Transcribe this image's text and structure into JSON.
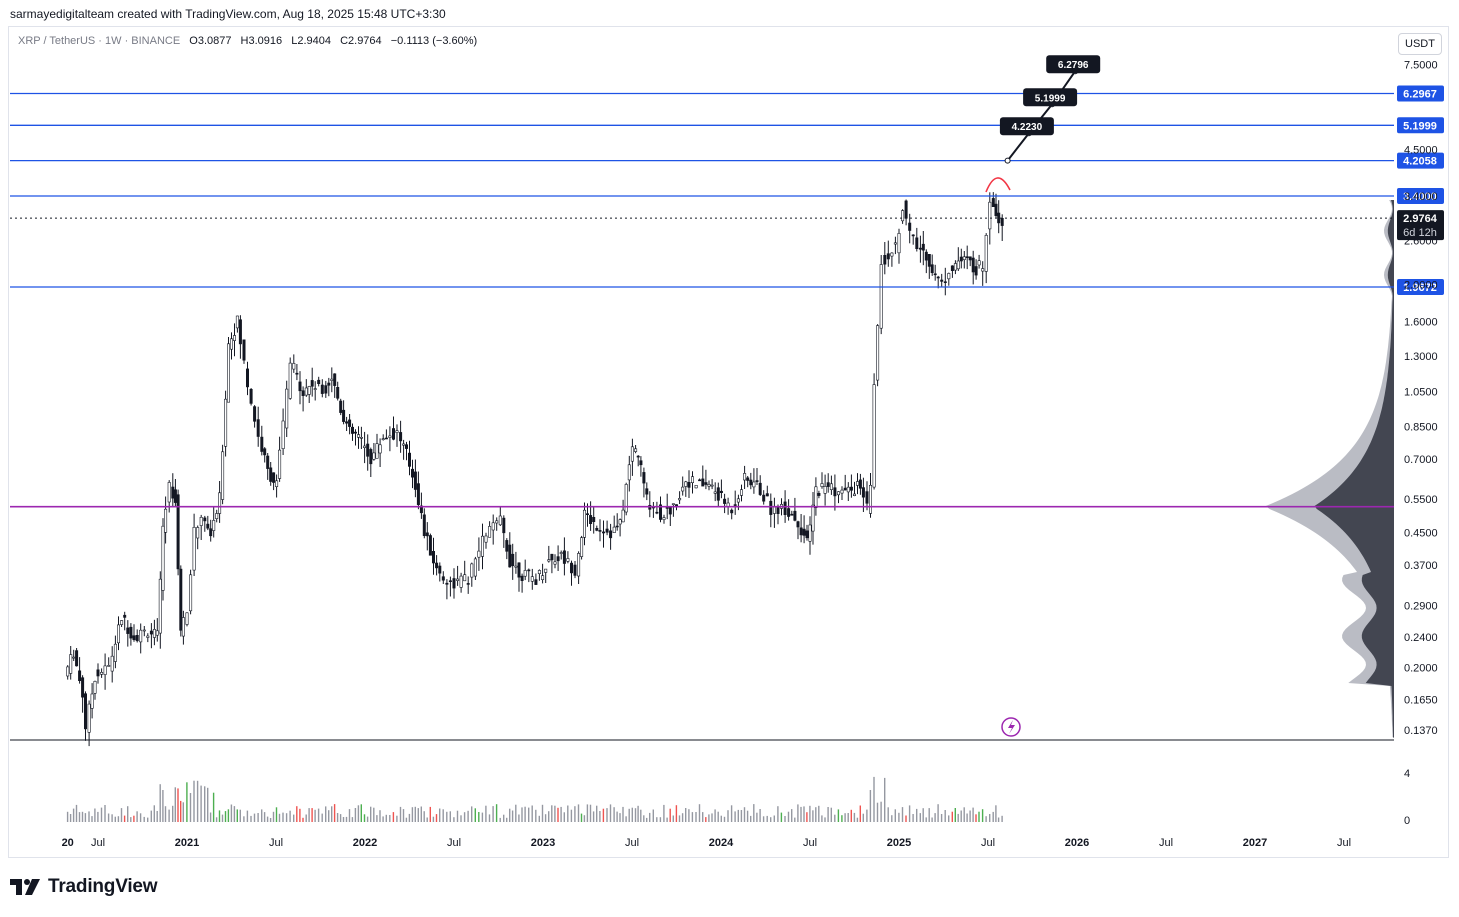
{
  "header": {
    "text": "sarmayedigitalteam created with TradingView.com, Aug 18, 2025 15:48 UTC+3:30"
  },
  "legend": {
    "symbol": "XRP / TetherUS · 1W · BINANCE",
    "open_key": "O",
    "open": "3.0877",
    "high_key": "H",
    "high": "3.0916",
    "low_key": "L",
    "low": "2.9404",
    "close_key": "C",
    "close": "2.9764",
    "change": "−0.1113 (−3.60%)"
  },
  "currency_button": "USDT",
  "brand": {
    "name": "TradingView"
  },
  "chart_data": {
    "type": "candlestick",
    "symbol": "XRP / TetherUS",
    "interval": "1W",
    "exchange": "BINANCE",
    "price_scale": "log",
    "y_axis_ticks": [
      7.5,
      4.5,
      3.4,
      2.6,
      2.0,
      1.6,
      1.3,
      1.05,
      0.85,
      0.7,
      0.55,
      0.45,
      0.37,
      0.29,
      0.24,
      0.2,
      0.165,
      0.137
    ],
    "y_axis_labels": [
      "7.5000",
      "4.5000",
      "3.4000",
      "2.6000",
      "2.0000",
      "1.6000",
      "1.3000",
      "1.0500",
      "0.8500",
      "0.7000",
      "0.5500",
      "0.4500",
      "0.3700",
      "0.2900",
      "0.2400",
      "0.2000",
      "0.1650",
      "0.1370"
    ],
    "x_axis_labels": [
      {
        "label": "20",
        "bold": true,
        "t": 2020.33
      },
      {
        "label": "Jul",
        "bold": false,
        "t": 2020.5
      },
      {
        "label": "2021",
        "bold": true,
        "t": 2021.0
      },
      {
        "label": "Jul",
        "bold": false,
        "t": 2021.5
      },
      {
        "label": "2022",
        "bold": true,
        "t": 2022.0
      },
      {
        "label": "Jul",
        "bold": false,
        "t": 2022.5
      },
      {
        "label": "2023",
        "bold": true,
        "t": 2023.0
      },
      {
        "label": "Jul",
        "bold": false,
        "t": 2023.5
      },
      {
        "label": "2024",
        "bold": true,
        "t": 2024.0
      },
      {
        "label": "Jul",
        "bold": false,
        "t": 2024.5
      },
      {
        "label": "2025",
        "bold": true,
        "t": 2025.0
      },
      {
        "label": "Jul",
        "bold": false,
        "t": 2025.5
      },
      {
        "label": "2026",
        "bold": true,
        "t": 2026.0
      },
      {
        "label": "Jul",
        "bold": false,
        "t": 2026.5
      },
      {
        "label": "2027",
        "bold": true,
        "t": 2027.0
      },
      {
        "label": "Jul",
        "bold": false,
        "t": 2027.5
      }
    ],
    "horizontal_levels": [
      {
        "value": 6.2967,
        "label": "6.2967",
        "color": "#1e53e5"
      },
      {
        "value": 5.1999,
        "label": "5.1999",
        "color": "#1e53e5"
      },
      {
        "value": 4.2058,
        "label": "4.2058",
        "color": "#1e53e5"
      },
      {
        "value": 3.4,
        "label": "3.4000",
        "color": "#1e53e5"
      },
      {
        "value": 1.9672,
        "label": "1.9672",
        "color": "#1e53e5"
      },
      {
        "value": 0.525,
        "label": "",
        "color": "#9c27b0"
      }
    ],
    "last_price": {
      "value": 2.9764,
      "label": "2.9764",
      "countdown": "6d 12h"
    },
    "target_path": [
      {
        "t": 2025.61,
        "v": 4.2058,
        "label": ""
      },
      {
        "t": 2025.73,
        "v": 4.96,
        "label": "4.2230"
      },
      {
        "t": 2025.86,
        "v": 5.9,
        "label": "5.1999"
      },
      {
        "t": 2025.99,
        "v": 7.2,
        "label": "6.2796"
      }
    ],
    "volume_axis_labels": [
      "4",
      "0"
    ],
    "price_path": [
      [
        2020.33,
        0.19
      ],
      [
        2020.38,
        0.22
      ],
      [
        2020.43,
        0.17
      ],
      [
        2020.45,
        0.14
      ],
      [
        2020.5,
        0.19
      ],
      [
        2020.58,
        0.2
      ],
      [
        2020.65,
        0.27
      ],
      [
        2020.72,
        0.24
      ],
      [
        2020.8,
        0.25
      ],
      [
        2020.85,
        0.24
      ],
      [
        2020.88,
        0.45
      ],
      [
        2020.92,
        0.6
      ],
      [
        2020.95,
        0.55
      ],
      [
        2020.98,
        0.25
      ],
      [
        2021.02,
        0.28
      ],
      [
        2021.06,
        0.45
      ],
      [
        2021.1,
        0.5
      ],
      [
        2021.15,
        0.44
      ],
      [
        2021.2,
        0.55
      ],
      [
        2021.25,
        1.4
      ],
      [
        2021.3,
        1.6
      ],
      [
        2021.36,
        1.1
      ],
      [
        2021.42,
        0.8
      ],
      [
        2021.47,
        0.65
      ],
      [
        2021.52,
        0.6
      ],
      [
        2021.6,
        1.25
      ],
      [
        2021.67,
        1.05
      ],
      [
        2021.72,
        1.1
      ],
      [
        2021.78,
        1.05
      ],
      [
        2021.83,
        1.15
      ],
      [
        2021.88,
        0.95
      ],
      [
        2021.93,
        0.82
      ],
      [
        2021.98,
        0.8
      ],
      [
        2022.05,
        0.7
      ],
      [
        2022.12,
        0.8
      ],
      [
        2022.2,
        0.82
      ],
      [
        2022.25,
        0.72
      ],
      [
        2022.3,
        0.6
      ],
      [
        2022.35,
        0.45
      ],
      [
        2022.42,
        0.36
      ],
      [
        2022.5,
        0.33
      ],
      [
        2022.6,
        0.34
      ],
      [
        2022.7,
        0.45
      ],
      [
        2022.78,
        0.48
      ],
      [
        2022.83,
        0.38
      ],
      [
        2022.9,
        0.35
      ],
      [
        2022.98,
        0.34
      ],
      [
        2023.05,
        0.38
      ],
      [
        2023.12,
        0.39
      ],
      [
        2023.2,
        0.36
      ],
      [
        2023.25,
        0.5
      ],
      [
        2023.32,
        0.47
      ],
      [
        2023.4,
        0.45
      ],
      [
        2023.45,
        0.47
      ],
      [
        2023.52,
        0.75
      ],
      [
        2023.55,
        0.72
      ],
      [
        2023.6,
        0.55
      ],
      [
        2023.68,
        0.5
      ],
      [
        2023.75,
        0.52
      ],
      [
        2023.82,
        0.62
      ],
      [
        2023.88,
        0.6
      ],
      [
        2023.95,
        0.6
      ],
      [
        2024.02,
        0.55
      ],
      [
        2024.08,
        0.52
      ],
      [
        2024.15,
        0.62
      ],
      [
        2024.22,
        0.6
      ],
      [
        2024.3,
        0.52
      ],
      [
        2024.38,
        0.52
      ],
      [
        2024.45,
        0.48
      ],
      [
        2024.5,
        0.42
      ],
      [
        2024.55,
        0.58
      ],
      [
        2024.62,
        0.6
      ],
      [
        2024.68,
        0.57
      ],
      [
        2024.75,
        0.58
      ],
      [
        2024.8,
        0.6
      ],
      [
        2024.84,
        0.52
      ],
      [
        2024.86,
        0.58
      ],
      [
        2024.88,
        1.1
      ],
      [
        2024.92,
        2.3
      ],
      [
        2024.96,
        2.4
      ],
      [
        2025.0,
        2.5
      ],
      [
        2025.04,
        3.2
      ],
      [
        2025.08,
        2.7
      ],
      [
        2025.12,
        2.5
      ],
      [
        2025.17,
        2.4
      ],
      [
        2025.22,
        2.1
      ],
      [
        2025.26,
        2.0
      ],
      [
        2025.3,
        2.2
      ],
      [
        2025.35,
        2.3
      ],
      [
        2025.4,
        2.3
      ],
      [
        2025.45,
        2.2
      ],
      [
        2025.49,
        2.25
      ],
      [
        2025.53,
        3.4
      ],
      [
        2025.56,
        3.1
      ],
      [
        2025.6,
        2.9
      ]
    ],
    "volume_profile_poc": 0.525
  }
}
